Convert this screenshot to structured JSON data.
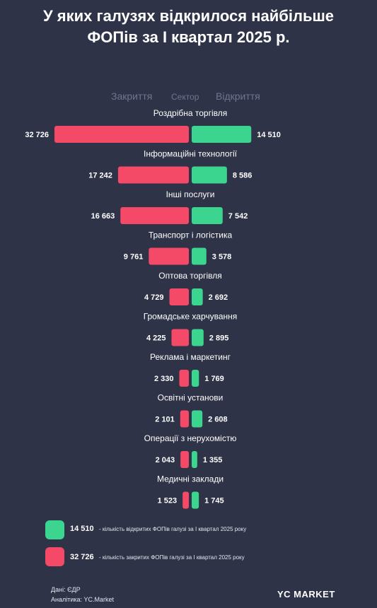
{
  "title_line1": "У яких галузях відкрилося найбільше",
  "title_line2": "ФОПів за І квартал 2025 р.",
  "columns": {
    "closed": "Закриття",
    "sector": "Сектор",
    "opened": "Відкриття"
  },
  "colors": {
    "background": "#2f3347",
    "opened": "#3bd58f",
    "closed": "#f44a68"
  },
  "chart_data": {
    "type": "bar",
    "categories": [
      "Роздрібна торгівля",
      "Інформаційні технології",
      "Інші послуги",
      "Транспорт і логістика",
      "Оптова торгівля",
      "Громадське харчування",
      "Реклама і маркетинг",
      "Освітні установи",
      "Операції з нерухомістю",
      "Медичні заклади"
    ],
    "series": [
      {
        "name": "Закриття",
        "values": [
          32726,
          17242,
          16663,
          9761,
          4729,
          4225,
          2330,
          2101,
          2043,
          1523
        ],
        "labels": [
          "32 726",
          "17 242",
          "16 663",
          "9 761",
          "4 729",
          "4 225",
          "2 330",
          "2 101",
          "2 043",
          "1 523"
        ]
      },
      {
        "name": "Відкриття",
        "values": [
          14510,
          8586,
          7542,
          3578,
          2692,
          2895,
          1769,
          2608,
          1355,
          1745
        ],
        "labels": [
          "14 510",
          "8 586",
          "7 542",
          "3 578",
          "2 692",
          "2 895",
          "1 769",
          "2 608",
          "1 355",
          "1 745"
        ]
      }
    ],
    "title": "У яких галузях відкрилося найбільше ФОПів за І квартал 2025 р.",
    "legend": "bottom-left"
  },
  "legend": {
    "opened_value": "14 510",
    "opened_text": "- кількість відкритих ФОПів галузі за І квартал 2025 року",
    "closed_value": "32 726",
    "closed_text": "- кількість закритих ФОПів галузі за І квартал 2025 року"
  },
  "source_line1": "Дані: ЄДР",
  "source_line2": "Аналітика: YC.Market",
  "brand": "YC MARKET"
}
